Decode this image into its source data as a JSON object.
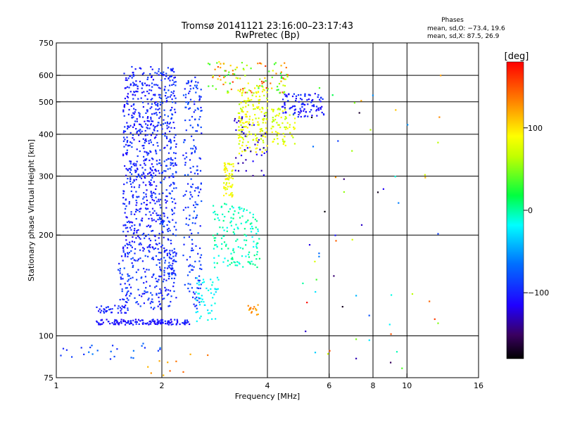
{
  "chart_data": {
    "type": "scatter",
    "title": "Tromsø 20141121 23:16:00–23:17:43",
    "subtitle": "RwPretec (Bp)",
    "phase_header": "Phases",
    "phase_stats": [
      "mean, sd,O: −73.4, 19.6",
      "mean, sd,X:  87.5, 26.9"
    ],
    "xlabel": "Frequency [MHz]",
    "ylabel": "Stationary phase Virtual Height [km]",
    "x_scale": "log",
    "y_scale": "log",
    "xlim": [
      1,
      16
    ],
    "ylim": [
      75,
      750
    ],
    "x_ticks": [
      1,
      2,
      4,
      6,
      8,
      10,
      16
    ],
    "x_tick_labels": [
      "1",
      "2",
      "4",
      "6",
      "8",
      "10",
      "16"
    ],
    "x_grid": [
      2,
      4,
      6,
      8,
      10
    ],
    "y_ticks": [
      75,
      100,
      200,
      300,
      400,
      500,
      600,
      750
    ],
    "y_tick_labels": [
      "75",
      "100",
      "200",
      "300",
      "400",
      "500",
      "600",
      "750"
    ],
    "y_grid": [
      100,
      200,
      300,
      400,
      500,
      600
    ],
    "grid": true,
    "colorbar": {
      "label": "[deg]",
      "range": [
        -180,
        180
      ],
      "ticks": [
        100,
        0,
        -100
      ],
      "tick_labels": [
        "100",
        "0",
        "−100"
      ]
    },
    "clusters": [
      {
        "x": [
          1.55,
          1.95
        ],
        "y": [
          180,
          640
        ],
        "phase": [
          -115,
          -85
        ],
        "count": 520
      },
      {
        "x": [
          1.95,
          2.2
        ],
        "y": [
          150,
          640
        ],
        "phase": [
          -110,
          -80
        ],
        "count": 300
      },
      {
        "x": [
          2.3,
          2.6
        ],
        "y": [
          120,
          600
        ],
        "phase": [
          -105,
          -75
        ],
        "count": 200
      },
      {
        "x": [
          1.5,
          2.2
        ],
        "y": [
          120,
          180
        ],
        "phase": [
          -110,
          -80
        ],
        "count": 180
      },
      {
        "x": [
          1.3,
          2.4
        ],
        "y": [
          108,
          112
        ],
        "phase": [
          -120,
          -95
        ],
        "count": 140
      },
      {
        "x": [
          1.3,
          1.6
        ],
        "y": [
          117,
          124
        ],
        "phase": [
          -110,
          -90
        ],
        "count": 40
      },
      {
        "x": [
          2.5,
          2.9
        ],
        "y": [
          110,
          150
        ],
        "phase": [
          -30,
          -10
        ],
        "count": 50
      },
      {
        "x": [
          2.8,
          3.8
        ],
        "y": [
          160,
          250
        ],
        "phase": [
          -20,
          10
        ],
        "count": 150
      },
      {
        "x": [
          3.0,
          3.2
        ],
        "y": [
          260,
          330
        ],
        "phase": [
          70,
          100
        ],
        "count": 60
      },
      {
        "x": [
          3.3,
          4.0
        ],
        "y": [
          350,
          560
        ],
        "phase": [
          60,
          100
        ],
        "count": 170
      },
      {
        "x": [
          4.1,
          4.8
        ],
        "y": [
          370,
          480
        ],
        "phase": [
          60,
          95
        ],
        "count": 70
      },
      {
        "x": [
          4.4,
          5.8
        ],
        "y": [
          450,
          530
        ],
        "phase": [
          -120,
          -90
        ],
        "count": 100
      },
      {
        "x": [
          2.7,
          4.6
        ],
        "y": [
          530,
          660
        ],
        "phase": [
          20,
          160
        ],
        "count": 110
      },
      {
        "x": [
          3.2,
          4.0
        ],
        "y": [
          300,
          460
        ],
        "phase": [
          -140,
          -110
        ],
        "count": 40
      },
      {
        "x": [
          3.5,
          3.8
        ],
        "y": [
          115,
          125
        ],
        "phase": [
          110,
          140
        ],
        "count": 15
      },
      {
        "x": [
          0.95,
          2.0
        ],
        "y": [
          85,
          95
        ],
        "phase": [
          -100,
          -60
        ],
        "count": 25
      },
      {
        "x": [
          1.8,
          2.8
        ],
        "y": [
          75,
          95
        ],
        "phase": [
          100,
          150
        ],
        "count": 10
      },
      {
        "x": [
          5.0,
          13.0
        ],
        "y": [
          80,
          640
        ],
        "phase": [
          -180,
          180
        ],
        "count": 60
      }
    ]
  }
}
